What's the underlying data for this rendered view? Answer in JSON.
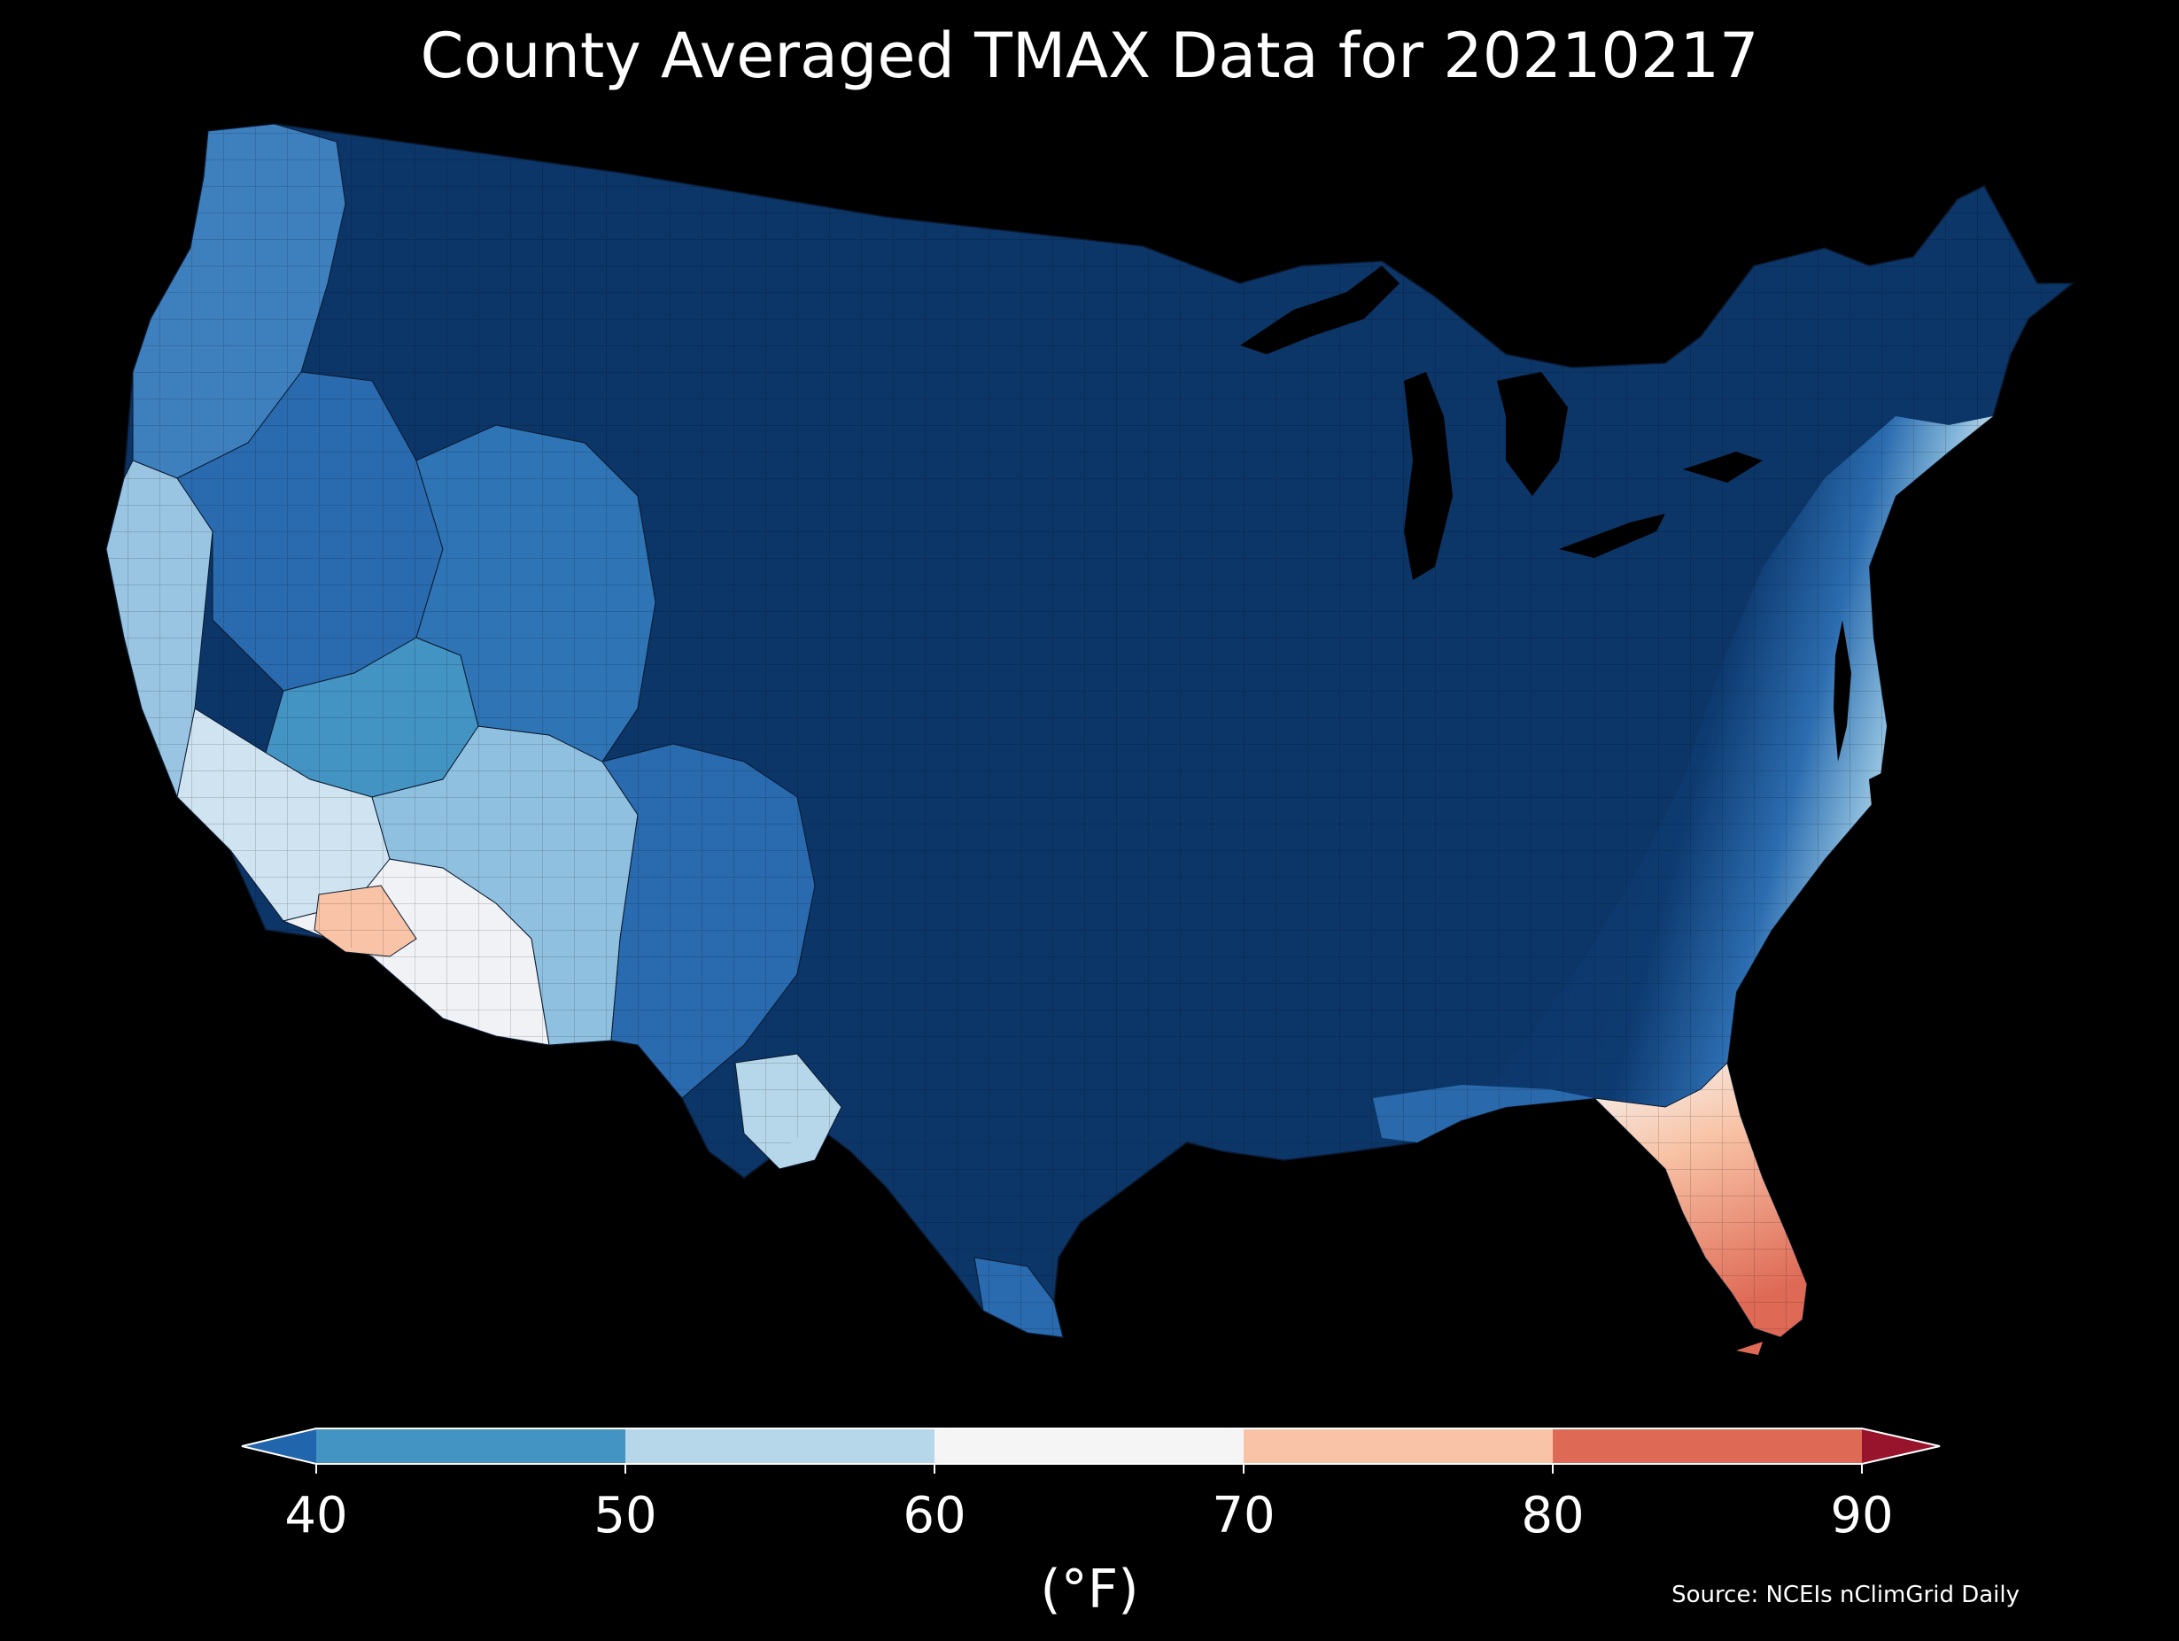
{
  "title": "County Averaged TMAX Data for 20210217",
  "colorbar": {
    "unit_label": "(°F)",
    "ticks": [
      "40",
      "50",
      "60",
      "70",
      "80",
      "90"
    ],
    "bins": [
      {
        "min": null,
        "max": 40,
        "color": "#2166ac"
      },
      {
        "min": 40,
        "max": 50,
        "color": "#4393c3"
      },
      {
        "min": 50,
        "max": 60,
        "color": "#b6d7e9"
      },
      {
        "min": 60,
        "max": 70,
        "color": "#f5f5f5"
      },
      {
        "min": 70,
        "max": 80,
        "color": "#f8c3a6"
      },
      {
        "min": 80,
        "max": 90,
        "color": "#de6a56"
      },
      {
        "min": 90,
        "max": null,
        "color": "#98142c"
      }
    ],
    "extend": "both"
  },
  "source": "Source: NCEIs nClimGrid Daily",
  "map_legend": {
    "coldest_color": "#0b3466",
    "background": "#000000"
  }
}
